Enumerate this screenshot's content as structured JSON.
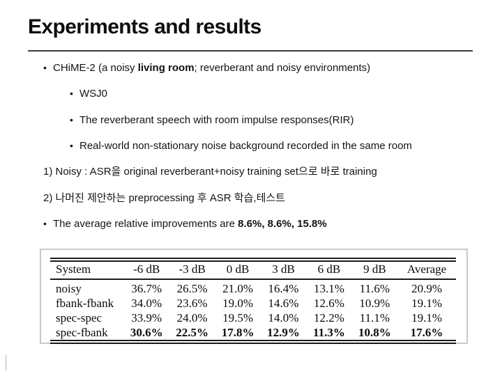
{
  "slide": {
    "title": "Experiments and results",
    "content": {
      "bullet_glyph": "•",
      "bullet1": {
        "prefix": "CHiME-2 (a noisy ",
        "bold": "living room",
        "suffix": "; reverberant and noisy environments)"
      },
      "sub_bullets": [
        "WSJ0",
        "The reverberant speech with room impulse responses(RIR)",
        "Real-world non-stationary noise background recorded in the same room"
      ],
      "numbered": [
        "1) Noisy : ASR을 original reverberant+noisy training set으로 바로 training",
        "2) 나머진 제안하는 preprocessing 후 ASR 학습,테스트"
      ],
      "bullet2": {
        "prefix": "The average relative improvements are ",
        "bold": "8.6%, 8.6%, 15.8%"
      }
    }
  },
  "chart_data": {
    "type": "table",
    "headers": [
      "System",
      "-6 dB",
      "-3 dB",
      "0 dB",
      "3 dB",
      "6 dB",
      "9 dB",
      "Average"
    ],
    "rows": [
      {
        "system": "noisy",
        "values": [
          "36.7%",
          "26.5%",
          "21.0%",
          "16.4%",
          "13.1%",
          "11.6%",
          "20.9%"
        ],
        "bold": false
      },
      {
        "system": "fbank-fbank",
        "values": [
          "34.0%",
          "23.6%",
          "19.0%",
          "14.6%",
          "12.6%",
          "10.9%",
          "19.1%"
        ],
        "bold": false
      },
      {
        "system": "spec-spec",
        "values": [
          "33.9%",
          "24.0%",
          "19.5%",
          "14.0%",
          "12.2%",
          "11.1%",
          "19.1%"
        ],
        "bold": false
      },
      {
        "system": "spec-fbank",
        "values": [
          "30.6%",
          "22.5%",
          "17.8%",
          "12.9%",
          "11.3%",
          "10.8%",
          "17.6%"
        ],
        "bold": true
      }
    ]
  },
  "colors": {
    "text": "#131313",
    "title_rule": "#3b3b3b",
    "table_border": "#c9c9c9"
  }
}
